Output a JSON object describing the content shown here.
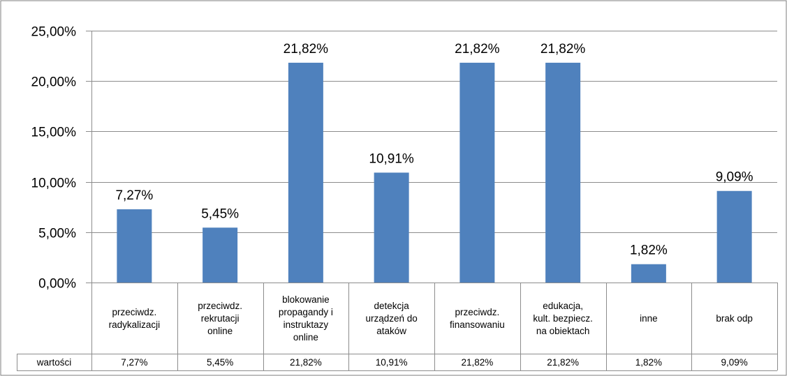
{
  "chart_data": {
    "type": "bar",
    "categories": [
      [
        "przeciwdz.",
        "radykalizacji"
      ],
      [
        "przeciwdz.",
        "rekrutacji",
        "online"
      ],
      [
        "blokowanie",
        "propagandy i",
        "instruktazy",
        "online"
      ],
      [
        "detekcja",
        "urządzeń do",
        "ataków"
      ],
      [
        "przeciwdz.",
        "finansowaniu"
      ],
      [
        "edukacja,",
        "kult. bezpiecz.",
        "na obiektach"
      ],
      [
        "inne"
      ],
      [
        "brak odp"
      ]
    ],
    "values": [
      7.27,
      5.45,
      21.82,
      10.91,
      21.82,
      21.82,
      1.82,
      9.09
    ],
    "value_labels": [
      "7,27%",
      "5,45%",
      "21,82%",
      "10,91%",
      "21,82%",
      "21,82%",
      "1,82%",
      "9,09%"
    ],
    "ylim": [
      0,
      25
    ],
    "yticks": [
      0,
      5,
      10,
      15,
      20,
      25
    ],
    "ytick_labels": [
      "0,00%",
      "5,00%",
      "10,00%",
      "15,00%",
      "20,00%",
      "25,00%"
    ],
    "grid": true,
    "data_table": {
      "row_label": "wartości",
      "cells": [
        "7,27%",
        "5,45%",
        "21,82%",
        "10,91%",
        "21,82%",
        "21,82%",
        "1,82%",
        "9,09%"
      ]
    },
    "colors": {
      "bar": "#4F81BD",
      "grid": "#8C8C8C",
      "border": "#7F7F7F"
    }
  }
}
